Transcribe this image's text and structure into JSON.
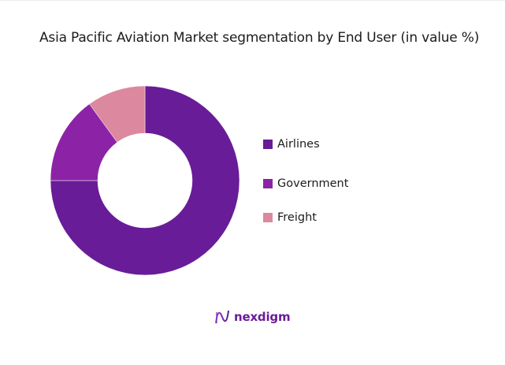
{
  "chart_data": {
    "type": "pie",
    "subtype": "donut",
    "title": "Asia Pacific Aviation Market segmentation by End User (in value %)",
    "categories": [
      "Airlines",
      "Government",
      "Freight"
    ],
    "values": [
      75,
      15,
      10
    ],
    "unit": "%",
    "colors": [
      "#681c98",
      "#8c23a6",
      "#dc889f"
    ],
    "legend_position": "right",
    "start_angle_deg": 0,
    "direction": "clockwise"
  },
  "header": {
    "title": "Asia Pacific Aviation Market segmentation by End User (in value %)"
  },
  "legend": {
    "items": [
      {
        "label": "Airlines",
        "color": "#681c98"
      },
      {
        "label": "Government",
        "color": "#8c23a6"
      },
      {
        "label": "Freight",
        "color": "#dc889f"
      }
    ]
  },
  "footer": {
    "brand": "nexdigm",
    "brand_color": "#6a1b9a"
  }
}
